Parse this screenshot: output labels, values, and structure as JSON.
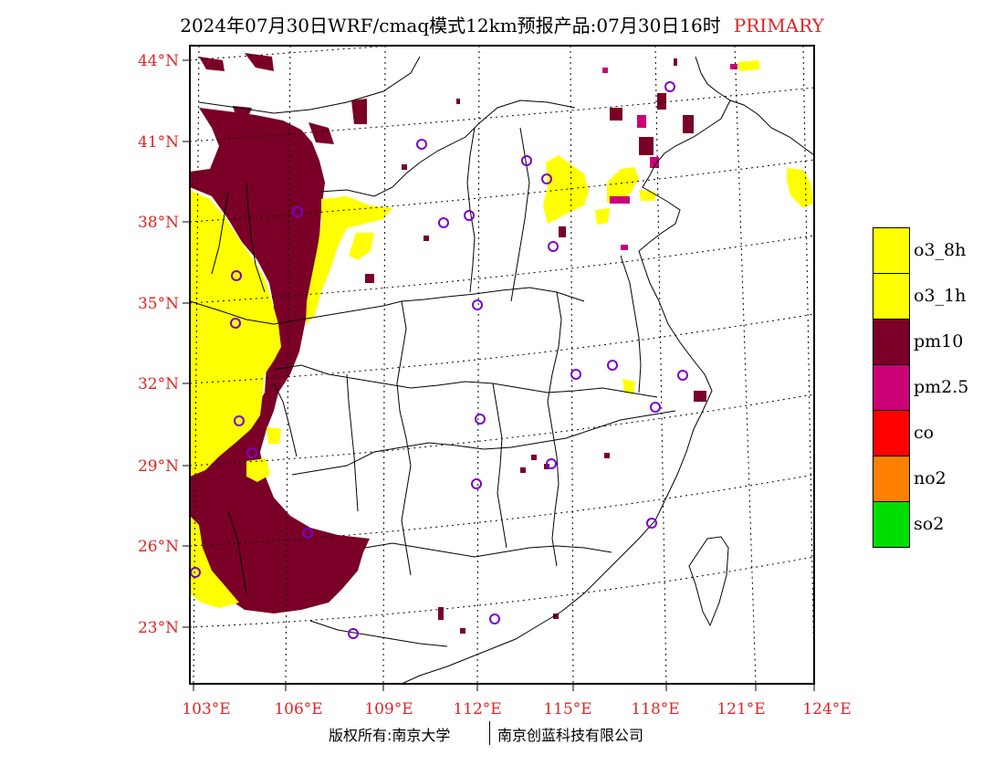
{
  "title": {
    "main": "2024年07月30日WRF/cmaq模式12km预报产品:07月30日16时",
    "tag": "PRIMARY"
  },
  "axes": {
    "lat_labels": [
      "44°N",
      "41°N",
      "38°N",
      "35°N",
      "32°N",
      "29°N",
      "26°N",
      "23°N"
    ],
    "lon_labels": [
      "103°E",
      "106°E",
      "109°E",
      "112°E",
      "115°E",
      "118°E",
      "121°E",
      "124°E"
    ]
  },
  "legend": {
    "items": [
      {
        "label": "o3_8h",
        "color": "#ffff00"
      },
      {
        "label": "o3_1h",
        "color": "#ffff00"
      },
      {
        "label": "pm10",
        "color": "#7a0028"
      },
      {
        "label": "pm2.5",
        "color": "#cc0077"
      },
      {
        "label": "co",
        "color": "#ff0000"
      },
      {
        "label": "no2",
        "color": "#ff7f00"
      },
      {
        "label": "so2",
        "color": "#00dd00"
      }
    ]
  },
  "footer": {
    "left": "版权所有:南京大学",
    "right": "南京创蓝科技有限公司"
  },
  "colors": {
    "pm10": "#7a0028",
    "o3": "#ffff00",
    "pm25": "#cc0077",
    "station": "#7a00cc",
    "tick": "#e02424"
  }
}
